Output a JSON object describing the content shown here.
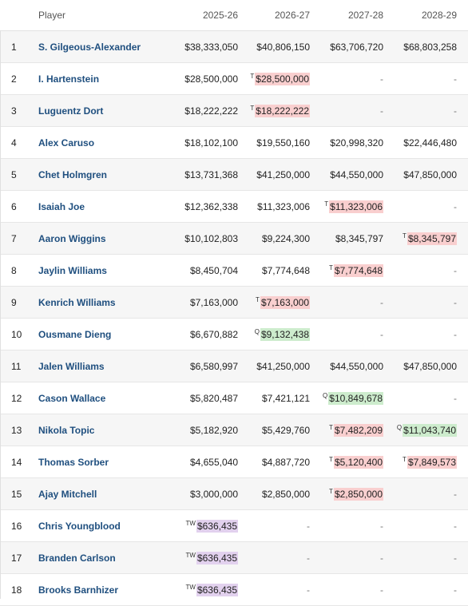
{
  "headers": {
    "rank": "",
    "player": "Player",
    "y1": "2025-26",
    "y2": "2026-27",
    "y3": "2027-28",
    "y4": "2028-29"
  },
  "colors": {
    "team_option": "#f9cfcf",
    "qualifying_offer": "#cdeccd",
    "two_way": "#e2d1ee",
    "player_link": "#1f4f7f"
  },
  "rows": [
    {
      "rank": "1",
      "player": "S. Gilgeous-Alexander",
      "c": [
        {
          "v": "$38,333,050"
        },
        {
          "v": "$40,806,150"
        },
        {
          "v": "$63,706,720"
        },
        {
          "v": "$68,803,258"
        }
      ]
    },
    {
      "rank": "2",
      "player": "I. Hartenstein",
      "c": [
        {
          "v": "$28,500,000"
        },
        {
          "v": "$28,500,000",
          "tag": "T",
          "hl": "t"
        },
        {
          "v": "-"
        },
        {
          "v": "-"
        }
      ]
    },
    {
      "rank": "3",
      "player": "Luguentz Dort",
      "c": [
        {
          "v": "$18,222,222"
        },
        {
          "v": "$18,222,222",
          "tag": "T",
          "hl": "t"
        },
        {
          "v": "-"
        },
        {
          "v": "-"
        }
      ]
    },
    {
      "rank": "4",
      "player": "Alex Caruso",
      "c": [
        {
          "v": "$18,102,100"
        },
        {
          "v": "$19,550,160"
        },
        {
          "v": "$20,998,320"
        },
        {
          "v": "$22,446,480"
        }
      ]
    },
    {
      "rank": "5",
      "player": "Chet Holmgren",
      "c": [
        {
          "v": "$13,731,368"
        },
        {
          "v": "$41,250,000"
        },
        {
          "v": "$44,550,000"
        },
        {
          "v": "$47,850,000"
        }
      ]
    },
    {
      "rank": "6",
      "player": "Isaiah Joe",
      "c": [
        {
          "v": "$12,362,338"
        },
        {
          "v": "$11,323,006"
        },
        {
          "v": "$11,323,006",
          "tag": "T",
          "hl": "t"
        },
        {
          "v": "-"
        }
      ]
    },
    {
      "rank": "7",
      "player": "Aaron Wiggins",
      "c": [
        {
          "v": "$10,102,803"
        },
        {
          "v": "$9,224,300"
        },
        {
          "v": "$8,345,797"
        },
        {
          "v": "$8,345,797",
          "tag": "T",
          "hl": "t"
        }
      ]
    },
    {
      "rank": "8",
      "player": "Jaylin Williams",
      "c": [
        {
          "v": "$8,450,704"
        },
        {
          "v": "$7,774,648"
        },
        {
          "v": "$7,774,648",
          "tag": "T",
          "hl": "t"
        },
        {
          "v": "-"
        }
      ]
    },
    {
      "rank": "9",
      "player": "Kenrich Williams",
      "c": [
        {
          "v": "$7,163,000"
        },
        {
          "v": "$7,163,000",
          "tag": "T",
          "hl": "t"
        },
        {
          "v": "-"
        },
        {
          "v": "-"
        }
      ]
    },
    {
      "rank": "10",
      "player": "Ousmane Dieng",
      "c": [
        {
          "v": "$6,670,882"
        },
        {
          "v": "$9,132,438",
          "tag": "Q",
          "hl": "q"
        },
        {
          "v": "-"
        },
        {
          "v": "-"
        }
      ]
    },
    {
      "rank": "11",
      "player": "Jalen Williams",
      "c": [
        {
          "v": "$6,580,997"
        },
        {
          "v": "$41,250,000"
        },
        {
          "v": "$44,550,000"
        },
        {
          "v": "$47,850,000"
        }
      ]
    },
    {
      "rank": "12",
      "player": "Cason Wallace",
      "c": [
        {
          "v": "$5,820,487"
        },
        {
          "v": "$7,421,121"
        },
        {
          "v": "$10,849,678",
          "tag": "Q",
          "hl": "q"
        },
        {
          "v": "-"
        }
      ]
    },
    {
      "rank": "13",
      "player": "Nikola Topic",
      "c": [
        {
          "v": "$5,182,920"
        },
        {
          "v": "$5,429,760"
        },
        {
          "v": "$7,482,209",
          "tag": "T",
          "hl": "t"
        },
        {
          "v": "$11,043,740",
          "tag": "Q",
          "hl": "q"
        }
      ]
    },
    {
      "rank": "14",
      "player": "Thomas Sorber",
      "c": [
        {
          "v": "$4,655,040"
        },
        {
          "v": "$4,887,720"
        },
        {
          "v": "$5,120,400",
          "tag": "T",
          "hl": "t"
        },
        {
          "v": "$7,849,573",
          "tag": "T",
          "hl": "t"
        }
      ]
    },
    {
      "rank": "15",
      "player": "Ajay Mitchell",
      "c": [
        {
          "v": "$3,000,000"
        },
        {
          "v": "$2,850,000"
        },
        {
          "v": "$2,850,000",
          "tag": "T",
          "hl": "t"
        },
        {
          "v": "-"
        }
      ]
    },
    {
      "rank": "16",
      "player": "Chris Youngblood",
      "c": [
        {
          "v": "$636,435",
          "tag": "TW",
          "hl": "tw"
        },
        {
          "v": "-"
        },
        {
          "v": "-"
        },
        {
          "v": "-"
        }
      ]
    },
    {
      "rank": "17",
      "player": "Branden Carlson",
      "c": [
        {
          "v": "$636,435",
          "tag": "TW",
          "hl": "tw"
        },
        {
          "v": "-"
        },
        {
          "v": "-"
        },
        {
          "v": "-"
        }
      ]
    },
    {
      "rank": "18",
      "player": "Brooks Barnhizer",
      "c": [
        {
          "v": "$636,435",
          "tag": "TW",
          "hl": "tw"
        },
        {
          "v": "-"
        },
        {
          "v": "-"
        },
        {
          "v": "-"
        }
      ]
    }
  ]
}
